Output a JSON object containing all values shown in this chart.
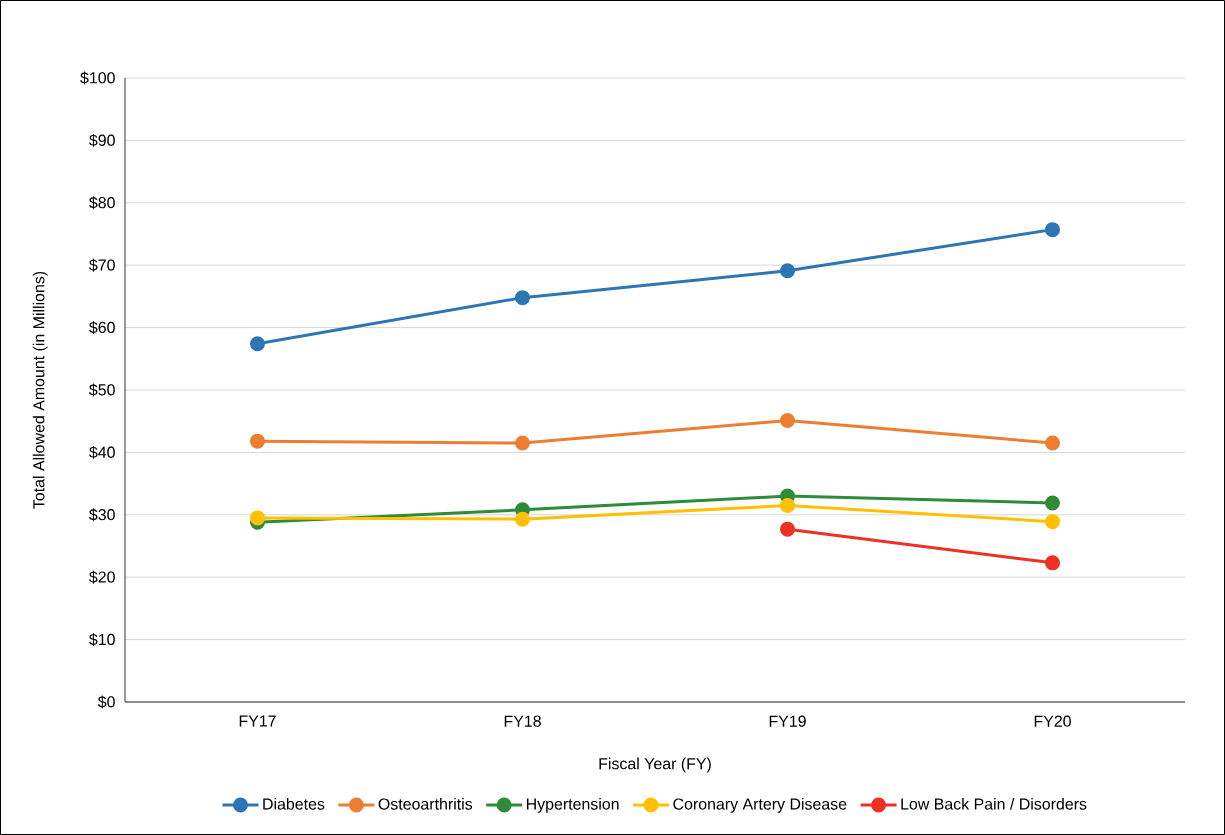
{
  "chart_data": {
    "type": "line",
    "xlabel": "Fiscal Year (FY)",
    "ylabel": "Total Allowed Amount (in Millions)",
    "categories": [
      "FY17",
      "FY18",
      "FY19",
      "FY20"
    ],
    "series": [
      {
        "name": "Diabetes",
        "color": "#2e75b6",
        "values": [
          57.4,
          64.8,
          69.1,
          75.7
        ]
      },
      {
        "name": "Osteoarthritis",
        "color": "#ed7d31",
        "values": [
          41.8,
          41.5,
          45.1,
          41.5
        ]
      },
      {
        "name": "Hypertension",
        "color": "#2e8b3a",
        "values": [
          28.8,
          30.8,
          33.0,
          31.9
        ]
      },
      {
        "name": "Coronary Artery Disease",
        "color": "#ffc000",
        "values": [
          29.5,
          29.3,
          31.5,
          28.9
        ]
      },
      {
        "name": "Low Back Pain / Disorders",
        "color": "#ee3124",
        "values": [
          null,
          null,
          27.7,
          22.3
        ]
      }
    ],
    "ylim": [
      0,
      100
    ],
    "yticks": [
      {
        "value": 0,
        "label": "$0"
      },
      {
        "value": 10,
        "label": "$10"
      },
      {
        "value": 20,
        "label": "$20"
      },
      {
        "value": 30,
        "label": "$30"
      },
      {
        "value": 40,
        "label": "$40"
      },
      {
        "value": 50,
        "label": "$50"
      },
      {
        "value": 60,
        "label": "$60"
      },
      {
        "value": 70,
        "label": "$70"
      },
      {
        "value": 80,
        "label": "$80"
      },
      {
        "value": 90,
        "label": "$90"
      },
      {
        "value": 100,
        "label": "$100"
      }
    ],
    "grid": "y",
    "legend": "bottom",
    "marker": "circle",
    "line_style": "solid"
  }
}
